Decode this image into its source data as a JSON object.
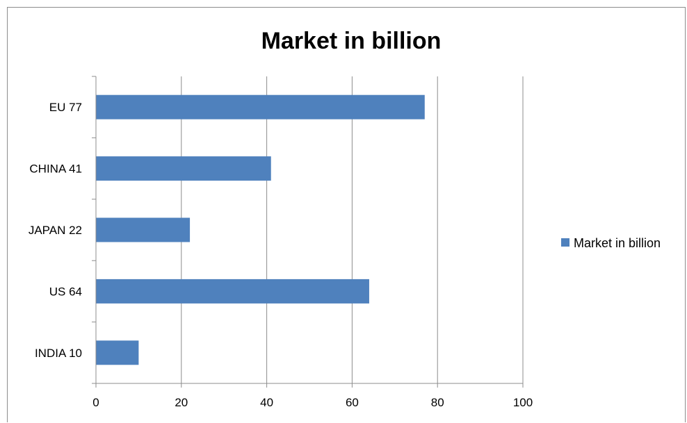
{
  "chart_data": {
    "type": "bar",
    "orientation": "horizontal",
    "title": "Market in billion",
    "categories": [
      "EU 77",
      "CHINA 41",
      "JAPAN 22",
      "US 64",
      "INDIA 10"
    ],
    "series": [
      {
        "name": "Market in billion",
        "values": [
          77,
          41,
          22,
          64,
          10
        ],
        "color": "#4f81bd"
      }
    ],
    "xlim": [
      0,
      100
    ],
    "x_ticks": [
      0,
      20,
      40,
      60,
      80,
      100
    ],
    "x_tick_labels": [
      "0",
      "20",
      "40",
      "60",
      "80",
      "100"
    ],
    "grid": true,
    "legend_position": "right"
  }
}
